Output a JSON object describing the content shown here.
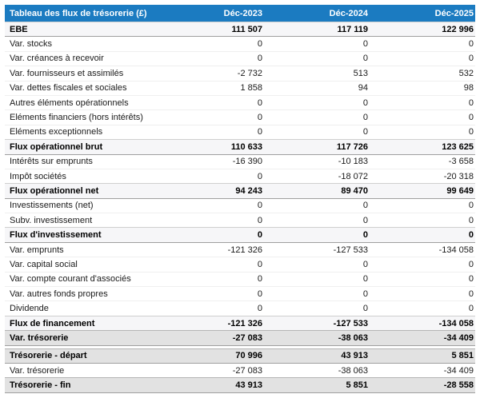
{
  "table": {
    "title": "Tableau des flux de trésorerie (£)",
    "columns": [
      "Déc-2023",
      "Déc-2024",
      "Déc-2025"
    ],
    "rows": [
      {
        "label": "EBE",
        "values": [
          "111 507",
          "117 119",
          "122 996"
        ],
        "style": "total"
      },
      {
        "label": "Var. stocks",
        "values": [
          "0",
          "0",
          "0"
        ],
        "style": "normal"
      },
      {
        "label": "Var. créances à recevoir",
        "values": [
          "0",
          "0",
          "0"
        ],
        "style": "normal"
      },
      {
        "label": "Var. fournisseurs et assimilés",
        "values": [
          "-2 732",
          "513",
          "532"
        ],
        "style": "normal"
      },
      {
        "label": "Var. dettes fiscales et sociales",
        "values": [
          "1 858",
          "94",
          "98"
        ],
        "style": "normal"
      },
      {
        "label": "Autres éléments opérationnels",
        "values": [
          "0",
          "0",
          "0"
        ],
        "style": "normal"
      },
      {
        "label": "Eléments financiers (hors intérêts)",
        "values": [
          "0",
          "0",
          "0"
        ],
        "style": "normal"
      },
      {
        "label": "Eléments exceptionnels",
        "values": [
          "0",
          "0",
          "0"
        ],
        "style": "normal"
      },
      {
        "label": "Flux opérationnel brut",
        "values": [
          "110 633",
          "117 726",
          "123 625"
        ],
        "style": "total"
      },
      {
        "label": "Intérêts sur emprunts",
        "values": [
          "-16 390",
          "-10 183",
          "-3 658"
        ],
        "style": "normal"
      },
      {
        "label": "Impôt sociétés",
        "values": [
          "0",
          "-18 072",
          "-20 318"
        ],
        "style": "normal"
      },
      {
        "label": "Flux opérationnel net",
        "values": [
          "94 243",
          "89 470",
          "99 649"
        ],
        "style": "total"
      },
      {
        "label": "Investissements (net)",
        "values": [
          "0",
          "0",
          "0"
        ],
        "style": "normal"
      },
      {
        "label": "Subv. investissement",
        "values": [
          "0",
          "0",
          "0"
        ],
        "style": "normal"
      },
      {
        "label": "Flux d'investissement",
        "values": [
          "0",
          "0",
          "0"
        ],
        "style": "total"
      },
      {
        "label": "Var. emprunts",
        "values": [
          "-121 326",
          "-127 533",
          "-134 058"
        ],
        "style": "normal"
      },
      {
        "label": "Var. capital social",
        "values": [
          "0",
          "0",
          "0"
        ],
        "style": "normal"
      },
      {
        "label": "Var. compte courant d'associés",
        "values": [
          "0",
          "0",
          "0"
        ],
        "style": "normal"
      },
      {
        "label": "Var. autres fonds propres",
        "values": [
          "0",
          "0",
          "0"
        ],
        "style": "normal"
      },
      {
        "label": "Dividende",
        "values": [
          "0",
          "0",
          "0"
        ],
        "style": "normal"
      },
      {
        "label": "Flux de financement",
        "values": [
          "-121 326",
          "-127 533",
          "-134 058"
        ],
        "style": "total"
      },
      {
        "label": "Var. trésorerie",
        "values": [
          "-27 083",
          "-38 063",
          "-34 409"
        ],
        "style": "strong"
      },
      {
        "label": "",
        "values": [],
        "style": "spacer"
      },
      {
        "label": "Trésorerie - départ",
        "values": [
          "70 996",
          "43 913",
          "5 851"
        ],
        "style": "strong"
      },
      {
        "label": "Var. trésorerie",
        "values": [
          "-27 083",
          "-38 063",
          "-34 409"
        ],
        "style": "normal"
      },
      {
        "label": "Trésorerie - fin",
        "values": [
          "43 913",
          "5 851",
          "-28 558"
        ],
        "style": "strong"
      }
    ]
  },
  "colors": {
    "header_bg": "#1b7bc1",
    "header_text": "#ffffff",
    "total_row_bg": "#f6f6f8",
    "strong_row_bg": "#e2e2e2"
  }
}
